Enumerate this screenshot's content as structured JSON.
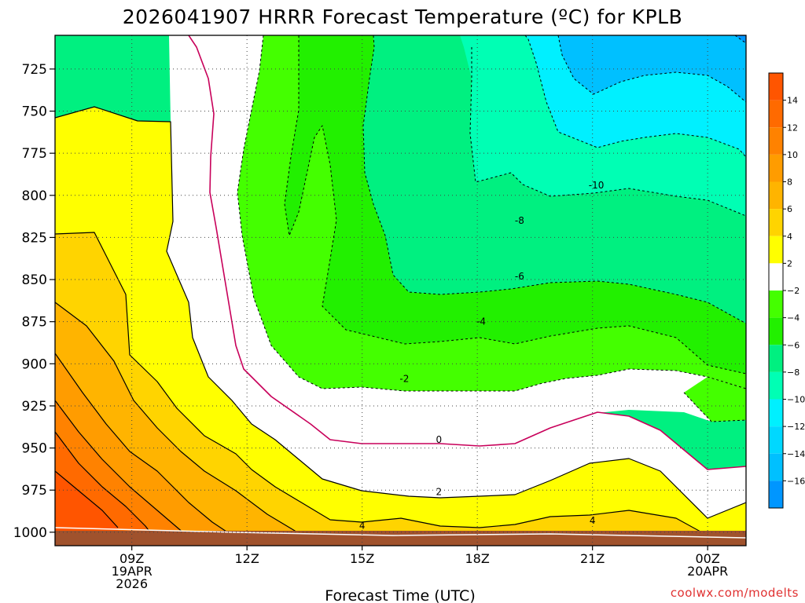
{
  "chart_data": {
    "type": "heatmap",
    "title": "2026041907 HRRR Forecast Temperature (ºC) for KPLB",
    "xlabel": "Forecast Time (UTC)",
    "ylabel": "",
    "y_axis": "pressure (mb), inverted",
    "ylim": [
      1008,
      705
    ],
    "xlim": [
      7,
      25
    ],
    "yticks": [
      725,
      750,
      775,
      800,
      825,
      850,
      875,
      900,
      925,
      950,
      975,
      1000
    ],
    "xticks": [
      {
        "x": 9,
        "lines": [
          "09Z",
          "19APR",
          "2026"
        ]
      },
      {
        "x": 12,
        "lines": [
          "12Z"
        ]
      },
      {
        "x": 15,
        "lines": [
          "15Z"
        ]
      },
      {
        "x": 18,
        "lines": [
          "18Z"
        ]
      },
      {
        "x": 21,
        "lines": [
          "21Z"
        ]
      },
      {
        "x": 24,
        "lines": [
          "00Z",
          "20APR"
        ]
      }
    ],
    "grid": true,
    "legend": "colorbar right",
    "colorbar": {
      "labels": [
        "14",
        "12",
        "10",
        "8",
        "6",
        "4",
        "2",
        "−2",
        "−4",
        "−6",
        "−8",
        "−10",
        "−12",
        "−14",
        "−16"
      ],
      "bins": [
        {
          "range": [
            14,
            16
          ],
          "color": "#ff5500"
        },
        {
          "range": [
            12,
            14
          ],
          "color": "#ff6a00"
        },
        {
          "range": [
            10,
            12
          ],
          "color": "#ff8200"
        },
        {
          "range": [
            8,
            10
          ],
          "color": "#ff9c00"
        },
        {
          "range": [
            6,
            8
          ],
          "color": "#ffb400"
        },
        {
          "range": [
            4,
            6
          ],
          "color": "#ffd400"
        },
        {
          "range": [
            2,
            4
          ],
          "color": "#ffff00"
        },
        {
          "range": [
            -2,
            2
          ],
          "color": "#ffffff"
        },
        {
          "range": [
            -4,
            -2
          ],
          "color": "#44ff00"
        },
        {
          "range": [
            -6,
            -4
          ],
          "color": "#22f000"
        },
        {
          "range": [
            -8,
            -6
          ],
          "color": "#00f080"
        },
        {
          "range": [
            -10,
            -8
          ],
          "color": "#00ffb4"
        },
        {
          "range": [
            -12,
            -10
          ],
          "color": "#00f0ff"
        },
        {
          "range": [
            -14,
            -12
          ],
          "color": "#00d8ff"
        },
        {
          "range": [
            -16,
            -14
          ],
          "color": "#00c0ff"
        },
        {
          "range": [
            -18,
            -16
          ],
          "color": "#0096ff"
        }
      ]
    },
    "contour_labels": [
      {
        "text": "-10",
        "x": 21.1,
        "p": 794
      },
      {
        "text": "-8",
        "x": 19.1,
        "p": 815
      },
      {
        "text": "-6",
        "x": 19.1,
        "p": 848
      },
      {
        "text": "-4",
        "x": 18.1,
        "p": 875
      },
      {
        "text": "-2",
        "x": 16.1,
        "p": 909
      },
      {
        "text": "0",
        "x": 17.0,
        "p": 945
      },
      {
        "text": "2",
        "x": 17.0,
        "p": 976
      },
      {
        "text": "4",
        "x": 15.0,
        "p": 996
      },
      {
        "text": "4",
        "x": 21.0,
        "p": 993
      }
    ],
    "zero_line_color": "#c8005a",
    "surface_color": "#a0522d"
  },
  "credit": "coolwx.com/modelts"
}
